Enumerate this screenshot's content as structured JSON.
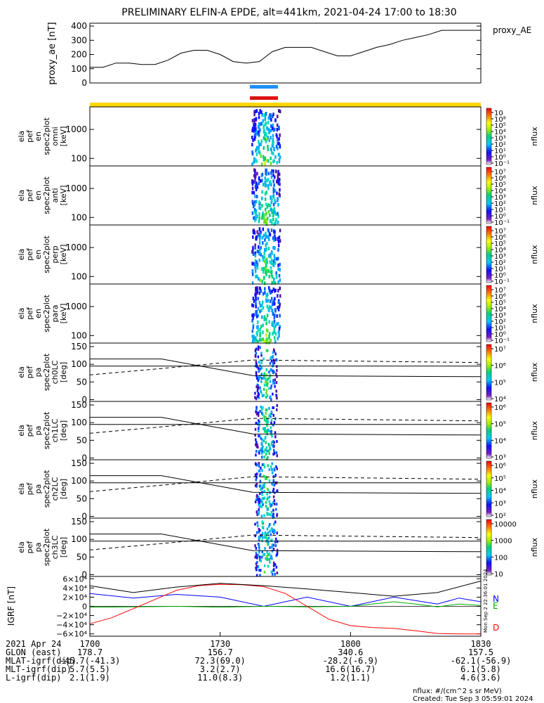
{
  "title": "PRELIMINARY ELFIN-A EPDE, alt=441km, 2021-04-24 17:00 to 18:30",
  "chart_data": [
    {
      "type": "line",
      "panel": "proxy_ae",
      "ylabel": "proxy_ae [nT]",
      "legend": "proxy_AE",
      "yticks": [
        0,
        100,
        200,
        300,
        400
      ],
      "ylim": [
        0,
        420
      ],
      "xlim": [
        1020,
        1110
      ],
      "x": [
        1020,
        1023,
        1026,
        1029,
        1032,
        1035,
        1038,
        1041,
        1044,
        1047,
        1050,
        1053,
        1056,
        1059,
        1062,
        1065,
        1068,
        1071,
        1074,
        1077,
        1080,
        1083,
        1086,
        1089,
        1092,
        1095,
        1098,
        1101,
        1104,
        1107,
        1110
      ],
      "values": [
        110,
        110,
        140,
        140,
        130,
        130,
        160,
        210,
        230,
        230,
        200,
        150,
        140,
        150,
        220,
        250,
        250,
        250,
        220,
        190,
        190,
        220,
        250,
        270,
        300,
        320,
        340,
        370,
        370,
        370,
        370
      ]
    },
    {
      "type": "bars",
      "panel": "science-zone-bars",
      "colors": [
        "#1e8fff",
        "#dd1111",
        "#ffd700"
      ]
    },
    {
      "type": "heatmap",
      "panel": "ela_pef_en_spec2plot_omni",
      "ylabel": [
        "ela",
        "pef",
        "en",
        "spec2plot",
        "omni",
        "[keV]"
      ],
      "yticks": [
        100,
        1000
      ],
      "colorbar": {
        "label": "nflux",
        "ticks": [
          "10",
          "10⁸",
          "10⁵",
          "10⁴",
          "10³",
          "10²",
          "10¹",
          "10⁰",
          "10⁻¹"
        ]
      }
    },
    {
      "type": "heatmap",
      "panel": "ela_pef_en_spec2plot_anti",
      "ylabel": [
        "ela",
        "pef",
        "en",
        "spec2plot",
        "anti",
        "[keV]"
      ],
      "yticks": [
        100,
        1000
      ],
      "colorbar": {
        "label": "nflux",
        "ticks": [
          "10⁷",
          "10⁶",
          "10⁵",
          "10⁴",
          "10³",
          "10²",
          "10¹",
          "10⁰",
          "10⁻¹"
        ]
      }
    },
    {
      "type": "heatmap",
      "panel": "ela_pef_en_spec2plot_perp",
      "ylabel": [
        "ela",
        "pef",
        "en",
        "spec2plot",
        "perp",
        "[keV]"
      ],
      "yticks": [
        100,
        1000
      ],
      "colorbar": {
        "label": "nflux",
        "ticks": [
          "10⁷",
          "10⁶",
          "10⁵",
          "10⁴",
          "10³",
          "10²",
          "10¹",
          "10⁰",
          "10⁻¹"
        ]
      }
    },
    {
      "type": "heatmap",
      "panel": "ela_pef_en_spec2plot_para",
      "ylabel": [
        "ela",
        "pef",
        "en",
        "spec2plot",
        "para",
        "[keV]"
      ],
      "yticks": [
        100,
        1000
      ],
      "colorbar": {
        "label": "nflux",
        "ticks": [
          "10⁷",
          "10⁶",
          "10⁵",
          "10⁴",
          "10³",
          "10²",
          "10¹",
          "10⁰",
          "10⁻¹"
        ]
      }
    },
    {
      "type": "heatmap",
      "panel": "ela_pef_pa_spec2plot_ch0LC",
      "ylabel": [
        "ela",
        "pef",
        "pa",
        "spec2plot",
        "ch0LC",
        "[deg]"
      ],
      "yticks": [
        0,
        50,
        100,
        150
      ],
      "colorbar": {
        "label": "nflux",
        "ticks": [
          "10⁷",
          "10⁶",
          "10⁵",
          "10⁴"
        ]
      }
    },
    {
      "type": "heatmap",
      "panel": "ela_pef_pa_spec2plot_ch1LC",
      "ylabel": [
        "ela",
        "pef",
        "pa",
        "spec2plot",
        "ch1LC",
        "[deg]"
      ],
      "yticks": [
        0,
        50,
        100,
        150
      ],
      "colorbar": {
        "label": "nflux",
        "ticks": [
          "10⁶",
          "10⁵",
          "10⁴",
          "10³"
        ]
      }
    },
    {
      "type": "heatmap",
      "panel": "ela_pef_pa_spec2plot_ch2LC",
      "ylabel": [
        "ela",
        "pef",
        "pa",
        "spec2plot",
        "ch2LC",
        "[deg]"
      ],
      "yticks": [
        0,
        50,
        100,
        150
      ],
      "colorbar": {
        "label": "nflux",
        "ticks": [
          "10⁶",
          "10⁵",
          "10⁴",
          "10³",
          "10²"
        ]
      }
    },
    {
      "type": "heatmap",
      "panel": "ela_pef_pa_spec2plot_ch3LC",
      "ylabel": [
        "ela",
        "pef",
        "pa",
        "spec2plot",
        "ch3LC",
        "[deg]"
      ],
      "yticks": [
        0,
        50,
        100,
        150
      ],
      "colorbar": {
        "label": "nflux",
        "ticks": [
          "10000",
          "1000",
          "100",
          "10"
        ]
      }
    },
    {
      "type": "line",
      "panel": "igrf",
      "ylabel": "IGRF [nT]",
      "yticklabels": [
        "6×10⁴",
        "4×10⁴",
        "2×10⁴",
        "0",
        "−2×10⁴",
        "−4×10⁴",
        "−6×10⁴"
      ],
      "yticks": [
        60000,
        40000,
        20000,
        0,
        -20000,
        -40000,
        -60000
      ],
      "ylim": [
        -65000,
        65000
      ],
      "xlim": [
        1020,
        1110
      ],
      "legend": [
        "N",
        "E",
        "D"
      ],
      "vertical_note": "Mon Sep 2 22:36:01 2024",
      "series": [
        {
          "name": "N",
          "color": "#0000ff",
          "x": [
            1020,
            1030,
            1040,
            1050,
            1060,
            1070,
            1080,
            1090,
            1100,
            1105,
            1110
          ],
          "values": [
            28000,
            18000,
            26000,
            20000,
            0,
            20000,
            0,
            20000,
            5000,
            18000,
            10000
          ]
        },
        {
          "name": "E",
          "color": "#00aa00",
          "x": [
            1020,
            1030,
            1040,
            1050,
            1060,
            1070,
            1080,
            1090,
            1095,
            1100,
            1105,
            1110
          ],
          "values": [
            -2000,
            -1000,
            0,
            -2000,
            0,
            -1000,
            0,
            10000,
            5000,
            -1000,
            5000,
            2000
          ]
        },
        {
          "name": "D",
          "color": "#ff0000",
          "x": [
            1020,
            1025,
            1030,
            1035,
            1040,
            1045,
            1050,
            1055,
            1060,
            1065,
            1070,
            1075,
            1080,
            1085,
            1090,
            1095,
            1100,
            1105,
            1110
          ],
          "values": [
            -38000,
            -25000,
            -5000,
            15000,
            35000,
            45000,
            48000,
            47000,
            43000,
            28000,
            0,
            -28000,
            -42000,
            -46000,
            -48000,
            -53000,
            -59000,
            -60000,
            -60000
          ]
        },
        {
          "name": "total",
          "color": "#000000",
          "x": [
            1020,
            1030,
            1040,
            1050,
            1060,
            1070,
            1080,
            1090,
            1100,
            1110
          ],
          "values": [
            45000,
            30000,
            42000,
            50000,
            45000,
            38000,
            30000,
            22000,
            30000,
            55000
          ]
        }
      ]
    }
  ],
  "xaxis": {
    "rows": [
      {
        "label": "2021 Apr 24",
        "values": [
          "1700",
          "1730",
          "1800",
          "1830"
        ]
      },
      {
        "label": "GLON (east)",
        "values": [
          "178.7",
          "156.7",
          "340.6",
          "157.5"
        ]
      },
      {
        "label": "MLAT-igrf(dip)",
        "values": [
          "-45.7(-41.3)",
          "72.3(69.0)",
          "-28.2(-6.9)",
          "-62.1(-56.9)"
        ]
      },
      {
        "label": "MLT-igrf(dip)",
        "values": [
          "5.7(5.5)",
          "3.2(2.7)",
          "16.6(16.7)",
          "6.1(5.8)"
        ]
      },
      {
        "label": "L-igrf(dip)",
        "values": [
          "2.1(1.9)",
          "11.0(8.3)",
          "1.2(1.1)",
          "4.6(3.6)"
        ]
      }
    ]
  },
  "footer": {
    "line1": "nflux: #/(cm^2 s sr MeV)",
    "line2": "Created: Tue Sep  3 05:59:01 2024"
  }
}
